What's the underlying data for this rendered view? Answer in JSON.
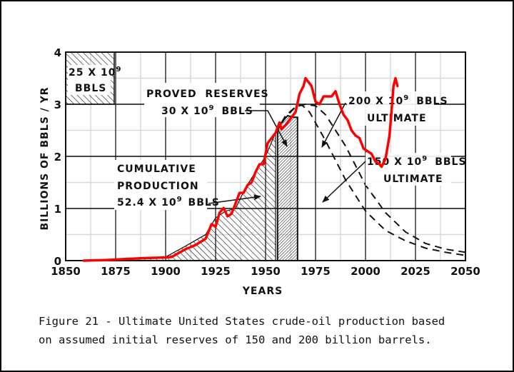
{
  "chart_data": {
    "type": "line",
    "title": "",
    "xlabel": "YEARS",
    "ylabel": "BILLIONS OF BBLS / YR",
    "xlim": [
      1850,
      2050
    ],
    "ylim": [
      0,
      4
    ],
    "x_ticks": [
      "1850",
      "1875",
      "1900",
      "1925",
      "1950",
      "1975",
      "2000",
      "2025",
      "2050"
    ],
    "x_tick_values": [
      1850,
      1875,
      1900,
      1925,
      1950,
      1975,
      2000,
      2025,
      2050
    ],
    "y_ticks": [
      "0",
      "1",
      "2",
      "3",
      "4"
    ],
    "y_tick_values": [
      0,
      1,
      2,
      3,
      4
    ],
    "grid": true,
    "colors": {
      "actual": "#ff0000",
      "ink": "#111111",
      "grid": "#d8d8d8"
    },
    "annotations": {
      "box_25": {
        "line1": "25 X 10",
        "sup1": "9",
        "line2": "BBLS"
      },
      "proved": {
        "line1": "PROVED  RESERVES",
        "line2": "30 X 10",
        "sup": "9",
        "line2b": "BBLS"
      },
      "cumulative": {
        "line1": "CUMULATIVE",
        "line2": "PRODUCTION",
        "line3": "52.4 X 10",
        "sup": "9",
        "line3b": "BBLS"
      },
      "ult200": {
        "line1": "200 X 10",
        "sup": "9",
        "line1b": "BBLS",
        "line2": "ULTIMATE"
      },
      "ult150": {
        "line1": "150 X 10",
        "sup": "9",
        "line1b": "BBLS",
        "line2": "ULTIMATE"
      }
    },
    "series": [
      {
        "name": "Historical / cumulative production (hatched)",
        "style": "hatched-area",
        "x": [
          1859,
          1875,
          1890,
          1900,
          1910,
          1920,
          1925,
          1930,
          1935,
          1940,
          1945,
          1950,
          1955
        ],
        "y": [
          0,
          0.01,
          0.04,
          0.07,
          0.28,
          0.5,
          0.82,
          0.95,
          1.0,
          1.4,
          1.7,
          2.0,
          2.45
        ]
      },
      {
        "name": "Proved reserves block (dense hatch)",
        "style": "dense-hatched-area",
        "x": [
          1956,
          1958,
          1961,
          1964,
          1966
        ],
        "y": [
          2.5,
          2.65,
          2.78,
          2.75,
          2.75
        ]
      },
      {
        "name": "150 x 10^9 bbls ultimate (dashed)",
        "style": "dashed",
        "x": [
          1955,
          1960,
          1965,
          1968,
          1972,
          1980,
          1990,
          2000,
          2010,
          2020,
          2030,
          2040,
          2050
        ],
        "y": [
          2.45,
          2.75,
          2.95,
          2.99,
          2.85,
          2.3,
          1.55,
          0.95,
          0.58,
          0.38,
          0.24,
          0.16,
          0.1
        ]
      },
      {
        "name": "200 x 10^9 bbls ultimate (dashed)",
        "style": "dashed",
        "x": [
          1955,
          1960,
          1965,
          1970,
          1975,
          1980,
          1990,
          2000,
          2010,
          2020,
          2030,
          2040,
          2050
        ],
        "y": [
          2.45,
          2.78,
          2.95,
          3.0,
          2.97,
          2.8,
          2.2,
          1.45,
          0.92,
          0.55,
          0.33,
          0.22,
          0.16
        ]
      },
      {
        "name": "Actual US production (red overlay)",
        "style": "red-line",
        "x": [
          1859,
          1870,
          1880,
          1890,
          1900,
          1903,
          1910,
          1915,
          1920,
          1923,
          1925,
          1927,
          1929,
          1931,
          1933,
          1935,
          1937,
          1939,
          1941,
          1943,
          1945,
          1947,
          1949,
          1951,
          1953,
          1955,
          1957,
          1958,
          1960,
          1963,
          1965,
          1967,
          1969,
          1970,
          1971,
          1973,
          1975,
          1977,
          1979,
          1981,
          1983,
          1985,
          1987,
          1989,
          1991,
          1993,
          1995,
          1997,
          1999,
          2001,
          2003,
          2005,
          2007,
          2008,
          2010,
          2012,
          2013,
          2014,
          2015,
          2016
        ],
        "y": [
          0,
          0.01,
          0.03,
          0.05,
          0.06,
          0.07,
          0.22,
          0.3,
          0.42,
          0.7,
          0.65,
          0.92,
          1.01,
          0.85,
          0.9,
          1.1,
          1.3,
          1.3,
          1.45,
          1.5,
          1.7,
          1.85,
          1.85,
          2.25,
          2.35,
          2.45,
          2.65,
          2.52,
          2.6,
          2.75,
          2.85,
          3.2,
          3.35,
          3.5,
          3.45,
          3.35,
          3.05,
          3.0,
          3.15,
          3.15,
          3.15,
          3.25,
          3.0,
          2.8,
          2.7,
          2.5,
          2.4,
          2.35,
          2.15,
          2.1,
          2.05,
          1.9,
          1.85,
          1.8,
          1.95,
          2.4,
          2.85,
          3.35,
          3.5,
          3.35
        ]
      }
    ]
  },
  "caption": {
    "line1": "Figure 21 - Ultimate United States crude-oil production based",
    "line2": "on assumed initial reserves of 150 and 200 billion barrels."
  }
}
